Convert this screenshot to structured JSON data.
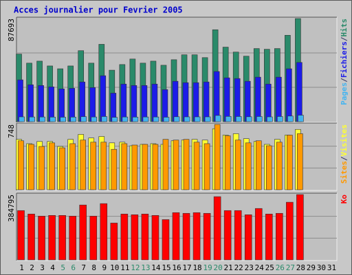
{
  "chart_data": [
    {
      "type": "bar",
      "title": "Acces journalier pour Fevrier 2005",
      "legend_separator": "/",
      "ylim": [
        0,
        87693
      ],
      "yticks": [
        29231,
        58462
      ],
      "series": [
        {
          "name": "Hits",
          "color": "#2a8a6a",
          "values": [
            57500,
            49800,
            51500,
            47400,
            45000,
            47400,
            60400,
            49800,
            65800,
            43800,
            48600,
            53300,
            49800,
            51500,
            48000,
            52700,
            56900,
            56900,
            54500,
            78200,
            63400,
            59200,
            55700,
            62200,
            61600,
            62200,
            73500,
            87693,
            null,
            null,
            null
          ]
        },
        {
          "name": "Fichiers",
          "color": "#1c1ce8",
          "values": [
            35600,
            31400,
            30800,
            29600,
            27900,
            28400,
            33800,
            29000,
            39100,
            24300,
            32000,
            30800,
            30800,
            32000,
            27300,
            34400,
            33200,
            33200,
            33800,
            42700,
            37300,
            36700,
            34400,
            37900,
            32000,
            37900,
            45000,
            50400,
            null,
            null,
            null
          ]
        },
        {
          "name": "Pages",
          "color": "#44b4f0",
          "values": [
            4100,
            4000,
            4000,
            3900,
            3800,
            3900,
            4300,
            4000,
            4400,
            3700,
            4000,
            3900,
            4000,
            4000,
            3800,
            4200,
            4100,
            4100,
            4100,
            5300,
            4500,
            4400,
            4200,
            4400,
            4100,
            4400,
            4800,
            5500,
            null,
            null,
            null
          ]
        }
      ]
    },
    {
      "type": "bar",
      "legend_separator": "/",
      "ylim": [
        0,
        748
      ],
      "yticks": [
        249,
        499
      ],
      "series": [
        {
          "name": "Visites",
          "color": "#ffff33",
          "values": [
            577,
            528,
            553,
            553,
            496,
            577,
            634,
            593,
            610,
            537,
            545,
            504,
            520,
            528,
            520,
            561,
            569,
            577,
            569,
            699,
            626,
            642,
            585,
            553,
            520,
            577,
            626,
            691,
            null,
            null,
            null
          ]
        },
        {
          "name": "Sites",
          "color": "#ff9900",
          "values": [
            561,
            520,
            496,
            537,
            480,
            528,
            569,
            545,
            545,
            463,
            528,
            512,
            520,
            520,
            577,
            569,
            577,
            545,
            528,
            748,
            618,
            569,
            537,
            561,
            504,
            545,
            626,
            642,
            null,
            null,
            null
          ]
        }
      ]
    },
    {
      "type": "bar",
      "ylim": [
        0,
        384795
      ],
      "yticks": [
        128265,
        256530
      ],
      "categories": [
        "1",
        "2",
        "3",
        "4",
        "5",
        "6",
        "7",
        "8",
        "9",
        "10",
        "11",
        "12",
        "13",
        "14",
        "15",
        "16",
        "17",
        "18",
        "19",
        "20",
        "21",
        "22",
        "23",
        "24",
        "25",
        "26",
        "27",
        "28",
        "29",
        "30",
        "31"
      ],
      "label_colors": [
        "#000000",
        "#000000",
        "#000000",
        "#000000",
        "#2a8a6a",
        "#2a8a6a",
        "#000000",
        "#000000",
        "#000000",
        "#000000",
        "#000000",
        "#2a8a6a",
        "#2a8a6a",
        "#000000",
        "#000000",
        "#000000",
        "#000000",
        "#000000",
        "#2a8a6a",
        "#2a8a6a",
        "#000000",
        "#000000",
        "#000000",
        "#000000",
        "#000000",
        "#2a8a6a",
        "#2a8a6a",
        "#000000",
        "#000000",
        "#000000",
        "#000000"
      ],
      "series": [
        {
          "name": "Ko",
          "color": "#ff0000",
          "values": [
            290600,
            270200,
            257900,
            262000,
            262000,
            257900,
            323400,
            257900,
            331600,
            217000,
            270200,
            266100,
            270200,
            262000,
            237400,
            278400,
            274300,
            278400,
            274300,
            372500,
            290600,
            290600,
            266100,
            302900,
            270200,
            274300,
            339800,
            384795,
            null,
            null,
            null
          ]
        }
      ]
    }
  ]
}
